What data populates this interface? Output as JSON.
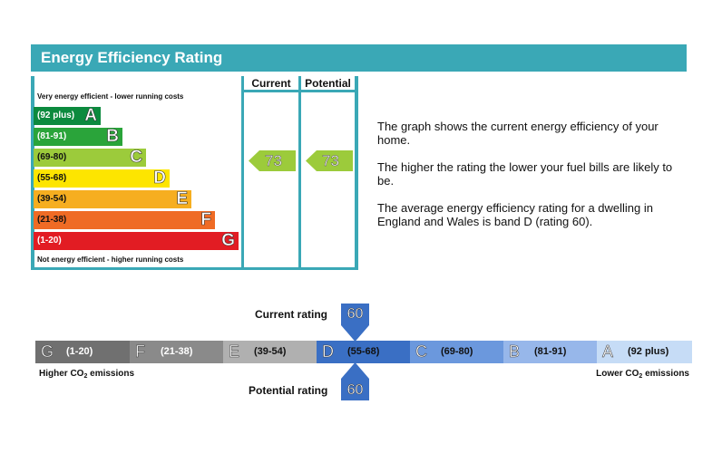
{
  "header": {
    "title": "Energy Efficiency Rating"
  },
  "columns": {
    "current": "Current",
    "potential": "Potential"
  },
  "notes": {
    "top": "Very energy efficient - lower running costs",
    "bottom": "Not energy efficient - higher running costs"
  },
  "chart_data": [
    {
      "type": "bar",
      "title": "Energy Efficiency Rating",
      "categories": [
        "A",
        "B",
        "C",
        "D",
        "E",
        "F",
        "G"
      ],
      "bands": [
        {
          "letter": "A",
          "range": "(92 plus)",
          "color": "#0c8a3e",
          "dark_text": false
        },
        {
          "letter": "B",
          "range": "(81-91)",
          "color": "#2aa43a",
          "dark_text": false
        },
        {
          "letter": "C",
          "range": "(69-80)",
          "color": "#9ccb3b",
          "dark_text": true
        },
        {
          "letter": "D",
          "range": "(55-68)",
          "color": "#fde500",
          "dark_text": true
        },
        {
          "letter": "E",
          "range": "(39-54)",
          "color": "#f6ae20",
          "dark_text": true
        },
        {
          "letter": "F",
          "range": "(21-38)",
          "color": "#ef6b25",
          "dark_text": true
        },
        {
          "letter": "G",
          "range": "(1-20)",
          "color": "#e21c23",
          "dark_text": false
        }
      ],
      "current": {
        "value": 73,
        "band": "C"
      },
      "potential": {
        "value": 73,
        "band": "C"
      },
      "arrow_color": "#9ccb3b"
    },
    {
      "type": "bar",
      "title": "",
      "segments": [
        {
          "letter": "G",
          "range": "(1-20)",
          "color": "#707070",
          "text_color": "#ffffff"
        },
        {
          "letter": "F",
          "range": "(21-38)",
          "color": "#8a8a8a",
          "text_color": "#ffffff"
        },
        {
          "letter": "E",
          "range": "(39-54)",
          "color": "#b0b0b0",
          "text_color": "#111111"
        },
        {
          "letter": "D",
          "range": "(55-68)",
          "color": "#3a6fc4",
          "text_color": "#111111"
        },
        {
          "letter": "C",
          "range": "(69-80)",
          "color": "#6b98dd",
          "text_color": "#111111"
        },
        {
          "letter": "B",
          "range": "(81-91)",
          "color": "#97b7ea",
          "text_color": "#111111"
        },
        {
          "letter": "A",
          "range": "(92 plus)",
          "color": "#c6dcf6",
          "text_color": "#111111"
        }
      ],
      "current_rating": 60,
      "potential_rating": 60,
      "marker_color": "#3a6fc4"
    }
  ],
  "description": {
    "p1": "The graph shows the current energy efficiency of your home.",
    "p2": "The higher the rating the lower your fuel bills are likely to be.",
    "p3": "The average energy efficiency rating for a dwelling in England and Wales is band D (rating 60)."
  },
  "co2": {
    "higher_label": "Higher CO",
    "higher_sub": "2",
    "higher_suffix": " emissions",
    "lower_label": "Lower CO",
    "lower_sub": "2",
    "lower_suffix": " emissions",
    "current_label": "Current rating",
    "potential_label": "Potential rating"
  }
}
